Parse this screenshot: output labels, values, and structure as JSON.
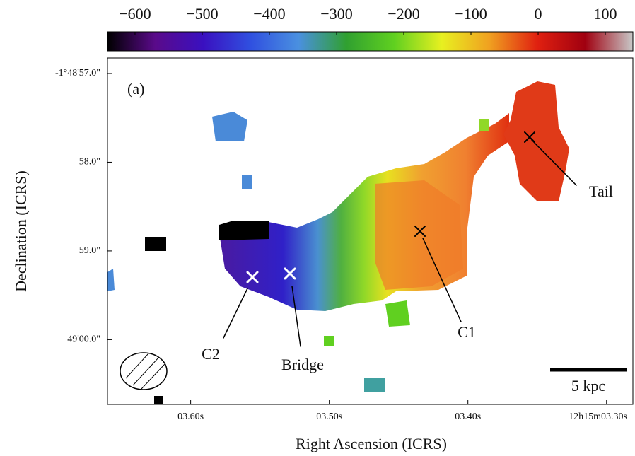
{
  "chart_data": {
    "type": "image",
    "title": "(a)",
    "xlabel": "Right Ascension (ICRS)",
    "ylabel": "Declination (ICRS)",
    "xlim": [
      3.66,
      3.281
    ],
    "xticks": [
      {
        "value": 3.6,
        "label": "03.60s"
      },
      {
        "value": 3.5,
        "label": "03.50s"
      },
      {
        "value": 3.4,
        "label": "03.40s"
      },
      {
        "value": 3.3,
        "label": "12h15m03.30s"
      }
    ],
    "ylim": [
      60.73,
      56.825
    ],
    "yticks": [
      {
        "value": 57,
        "label": "-1°48'57.0\""
      },
      {
        "value": 58,
        "label": "58.0\""
      },
      {
        "value": 59,
        "label": "59.0\""
      },
      {
        "value": 60,
        "label": "49'00.0\""
      }
    ],
    "clim": [
      -641,
      141
    ],
    "cticks": [
      {
        "value": -600,
        "label": "−600"
      },
      {
        "value": -500,
        "label": "−500"
      },
      {
        "value": -400,
        "label": "−400"
      },
      {
        "value": -300,
        "label": "−300"
      },
      {
        "value": -200,
        "label": "−200"
      },
      {
        "value": -100,
        "label": "−100"
      },
      0,
      100
    ],
    "colormap": [
      "#000000",
      "#5a0a8a",
      "#3a10c0",
      "#3050e0",
      "#4a90e0",
      "#30a030",
      "#60d020",
      "#e8f020",
      "#f0a020",
      "#e02010",
      "#a00010",
      "#c8c8c8"
    ],
    "annotations": [
      "C2",
      "Bridge",
      "C1",
      "Tail",
      "5 kpc"
    ]
  }
}
